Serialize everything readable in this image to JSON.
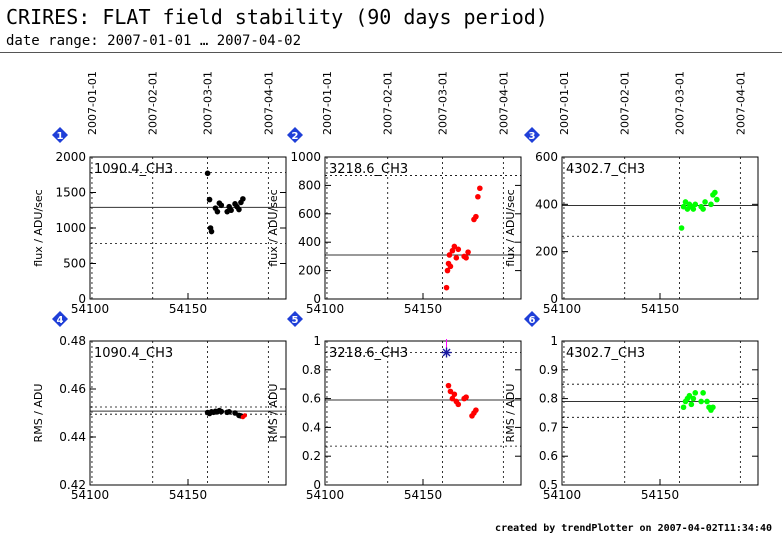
{
  "header": {
    "title": "CRIRES: FLAT field stability (90 days period)",
    "subtitle": "date range: 2007-01-01 … 2007-04-02"
  },
  "footer": {
    "text": "created by trendPlotter on 2007-04-02T11:34:40"
  },
  "top_axis": {
    "date_ticks": [
      "2007-01-01",
      "2007-02-01",
      "2007-03-01",
      "2007-04-01"
    ],
    "mjd": [
      54101,
      54132,
      54160,
      54191
    ]
  },
  "chart_data": [
    {
      "type": "scatter",
      "panel": "1",
      "label": "1090.4_CH3",
      "ylabel": "flux / ADU/sec",
      "xlim": [
        54100,
        54200
      ],
      "ylim": [
        0,
        2000
      ],
      "yticks": [
        0,
        500,
        1000,
        1500,
        2000
      ],
      "xticks": [
        "54100",
        "54150"
      ],
      "color": "#000000",
      "ref_line": 1290,
      "dotted_lines": [
        780,
        1780
      ],
      "x": [
        54160,
        54161,
        54161.5,
        54162,
        54164,
        54165,
        54166,
        54167,
        54170,
        54171,
        54172,
        54174,
        54175,
        54176,
        54177,
        54178
      ],
      "y": [
        1770,
        1400,
        1000,
        950,
        1280,
        1230,
        1350,
        1320,
        1230,
        1300,
        1250,
        1340,
        1300,
        1260,
        1360,
        1410
      ]
    },
    {
      "type": "scatter",
      "panel": "2",
      "label": "3218.6_CH3",
      "ylabel": "flux / ADU/sec",
      "xlim": [
        54100,
        54200
      ],
      "ylim": [
        0,
        1000
      ],
      "yticks": [
        0,
        200,
        400,
        600,
        800,
        1000
      ],
      "xticks": [
        "54100",
        "54150"
      ],
      "color": "#ff0000",
      "ref_line": 310,
      "dotted_lines": [
        870
      ],
      "x": [
        54162,
        54162.5,
        54163,
        54163.5,
        54164,
        54165,
        54166,
        54167,
        54168,
        54171,
        54172,
        54173,
        54176,
        54177,
        54178,
        54179
      ],
      "y": [
        80,
        200,
        250,
        310,
        230,
        340,
        370,
        290,
        350,
        300,
        290,
        330,
        560,
        580,
        720,
        780
      ]
    },
    {
      "type": "scatter",
      "panel": "3",
      "label": "4302.7_CH3",
      "ylabel": "flux / ADU/sec",
      "xlim": [
        54100,
        54200
      ],
      "ylim": [
        0,
        600
      ],
      "yticks": [
        0,
        200,
        400,
        600
      ],
      "xticks": [
        "54100",
        "54150"
      ],
      "color": "#00ff00",
      "ref_line": 395,
      "dotted_lines": [
        265
      ],
      "x": [
        54161,
        54162,
        54163,
        54164,
        54165,
        54166,
        54167,
        54168,
        54171,
        54172,
        54173,
        54176,
        54177,
        54178,
        54179
      ],
      "y": [
        300,
        390,
        410,
        380,
        400,
        390,
        380,
        400,
        390,
        380,
        410,
        400,
        440,
        450,
        420
      ]
    },
    {
      "type": "scatter",
      "panel": "4",
      "label": "1090.4_CH3",
      "ylabel": "RMS / ADU",
      "xlim": [
        54100,
        54200
      ],
      "ylim": [
        0.42,
        0.48
      ],
      "yticks": [
        0.42,
        0.44,
        0.46,
        0.48
      ],
      "xticks": [
        "54100",
        "54150"
      ],
      "color": "#000000",
      "ref_line": 0.4508,
      "dotted_lines": [
        0.4525,
        0.4495
      ],
      "x": [
        54160,
        54161,
        54162,
        54163,
        54164,
        54165,
        54166,
        54167,
        54170,
        54171,
        54174,
        54176,
        54177
      ],
      "y": [
        0.4502,
        0.4498,
        0.4505,
        0.4503,
        0.4507,
        0.4505,
        0.451,
        0.4506,
        0.4503,
        0.4505,
        0.45,
        0.449,
        0.4488
      ],
      "extra_x": [
        54178,
        54179
      ],
      "extra_y": [
        0.4483,
        0.449
      ],
      "extra_color": "#ff0000"
    },
    {
      "type": "scatter",
      "panel": "5",
      "label": "3218.6_CH3",
      "ylabel": "RMS / ADU",
      "xlim": [
        54100,
        54200
      ],
      "ylim": [
        0,
        1
      ],
      "yticks": [
        0,
        0.2,
        0.4,
        0.6,
        0.8,
        1
      ],
      "xticks": [
        "54100",
        "54150"
      ],
      "color": "#ff0000",
      "ref_line": 0.59,
      "dotted_lines": [
        0.92,
        0.27
      ],
      "x": [
        54163,
        54164,
        54165,
        54166,
        54167,
        54168,
        54171,
        54172,
        54175,
        54176,
        54177
      ],
      "y": [
        0.69,
        0.65,
        0.6,
        0.63,
        0.58,
        0.56,
        0.6,
        0.61,
        0.48,
        0.5,
        0.52
      ],
      "star_x": 54162,
      "star_y": 0.92,
      "star_color": "#1a1aa0"
    },
    {
      "type": "scatter",
      "panel": "6",
      "label": "4302.7_CH3",
      "ylabel": "RMS / ADU",
      "xlim": [
        54100,
        54200
      ],
      "ylim": [
        0.5,
        1
      ],
      "yticks": [
        0.5,
        0.6,
        0.7,
        0.8,
        0.9,
        1
      ],
      "xticks": [
        "54100",
        "54150"
      ],
      "color": "#00ff00",
      "ref_line": 0.79,
      "dotted_lines": [
        0.85,
        0.735
      ],
      "x": [
        54162,
        54163,
        54164,
        54165,
        54166,
        54167,
        54168,
        54171,
        54172,
        54174,
        54175,
        54176,
        54177
      ],
      "y": [
        0.77,
        0.79,
        0.8,
        0.81,
        0.78,
        0.8,
        0.82,
        0.79,
        0.82,
        0.79,
        0.77,
        0.76,
        0.77
      ]
    }
  ],
  "colors": {
    "badge": "#1f3fd8"
  }
}
